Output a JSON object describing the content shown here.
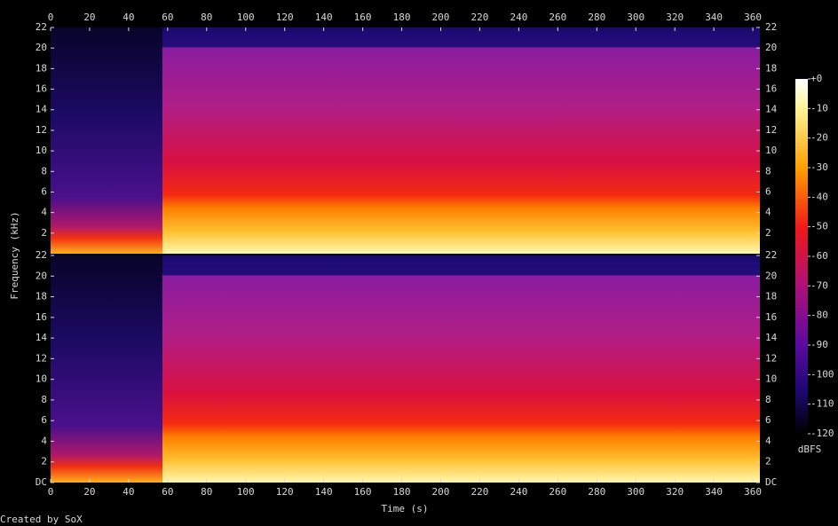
{
  "chart_data": {
    "type": "spectrogram",
    "xlabel": "Time (s)",
    "ylabel": "Frequency (kHz)",
    "footer": "Created by SoX",
    "xlim": [
      0,
      363.6
    ],
    "xticks": [
      0,
      20,
      40,
      60,
      80,
      100,
      120,
      140,
      160,
      180,
      200,
      220,
      240,
      260,
      280,
      300,
      320,
      340,
      360
    ],
    "channels": [
      {
        "ylim": [
          0,
          22
        ],
        "yticks": [
          2,
          4,
          6,
          8,
          10,
          12,
          14,
          16,
          18,
          20,
          22
        ]
      },
      {
        "ylim": [
          0,
          22
        ],
        "yticks": [
          {
            "value": 0,
            "label": "DC"
          },
          2,
          4,
          6,
          8,
          10,
          12,
          14,
          16,
          18,
          20,
          22
        ]
      }
    ],
    "colorbar": {
      "label": "dBFS",
      "zlim": [
        -120,
        0
      ],
      "ticks": [
        {
          "value": 0,
          "label": "+0"
        },
        -10,
        -20,
        -30,
        -40,
        -50,
        -60,
        -70,
        -80,
        -90,
        -100,
        -110,
        -120
      ]
    }
  }
}
